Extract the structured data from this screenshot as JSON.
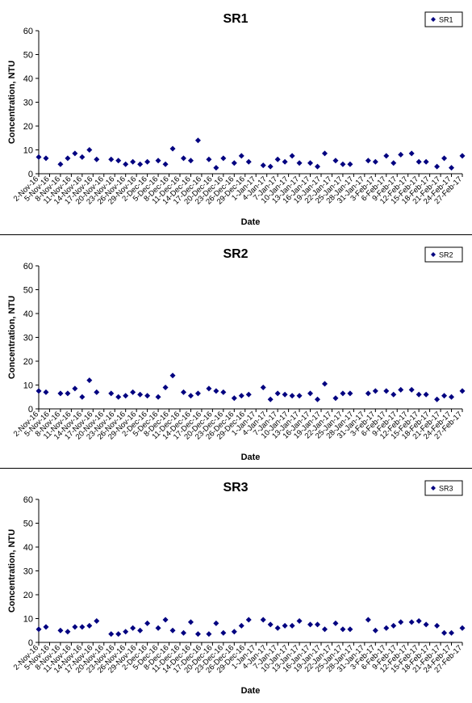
{
  "chart_data": [
    {
      "type": "scatter",
      "title": "SR1",
      "xlabel": "Date",
      "ylabel": "Concentration, NTU",
      "ylim": [
        0,
        60
      ],
      "yticks": [
        0,
        10,
        20,
        30,
        40,
        50,
        60
      ],
      "xlim": [
        "2016-11-02",
        "2017-02-27"
      ],
      "xticks": [
        "2-Nov-16",
        "5-Nov-16",
        "8-Nov-16",
        "11-Nov-16",
        "14-Nov-16",
        "17-Nov-16",
        "20-Nov-16",
        "23-Nov-16",
        "26-Nov-16",
        "29-Nov-16",
        "2-Dec-16",
        "5-Dec-16",
        "8-Dec-16",
        "11-Dec-16",
        "14-Dec-16",
        "17-Dec-16",
        "20-Dec-16",
        "23-Dec-16",
        "26-Dec-16",
        "29-Dec-16",
        "1-Jan-17",
        "4-Jan-17",
        "7-Jan-17",
        "10-Jan-17",
        "13-Jan-17",
        "16-Jan-17",
        "19-Jan-17",
        "22-Jan-17",
        "25-Jan-17",
        "28-Jan-17",
        "31-Jan-17",
        "3-Feb-17",
        "6-Feb-17",
        "9-Feb-17",
        "12-Feb-17",
        "15-Feb-17",
        "18-Feb-17",
        "21-Feb-17",
        "24-Feb-17",
        "27-Feb-17"
      ],
      "legend": "top-right",
      "grid": false,
      "color": "#000080",
      "series": [
        {
          "name": "SR1",
          "points": [
            [
              "2016-11-02",
              7
            ],
            [
              "2016-11-04",
              6.5
            ],
            [
              "2016-11-08",
              4
            ],
            [
              "2016-11-10",
              6.5
            ],
            [
              "2016-11-12",
              8.5
            ],
            [
              "2016-11-14",
              7
            ],
            [
              "2016-11-16",
              10
            ],
            [
              "2016-11-18",
              6
            ],
            [
              "2016-11-22",
              6
            ],
            [
              "2016-11-24",
              5.5
            ],
            [
              "2016-11-26",
              4
            ],
            [
              "2016-11-28",
              5
            ],
            [
              "2016-11-30",
              4
            ],
            [
              "2016-12-02",
              5
            ],
            [
              "2016-12-05",
              5.5
            ],
            [
              "2016-12-07",
              4
            ],
            [
              "2016-12-09",
              10.5
            ],
            [
              "2016-12-12",
              6.5
            ],
            [
              "2016-12-14",
              5.5
            ],
            [
              "2016-12-16",
              14
            ],
            [
              "2016-12-19",
              6
            ],
            [
              "2016-12-21",
              2.5
            ],
            [
              "2016-12-23",
              6.5
            ],
            [
              "2016-12-26",
              4.5
            ],
            [
              "2016-12-28",
              7.5
            ],
            [
              "2016-12-30",
              5
            ],
            [
              "2017-01-03",
              3.5
            ],
            [
              "2017-01-05",
              3
            ],
            [
              "2017-01-07",
              6
            ],
            [
              "2017-01-09",
              5
            ],
            [
              "2017-01-11",
              7.5
            ],
            [
              "2017-01-13",
              4.5
            ],
            [
              "2017-01-16",
              4.5
            ],
            [
              "2017-01-18",
              3
            ],
            [
              "2017-01-20",
              8.5
            ],
            [
              "2017-01-23",
              5.5
            ],
            [
              "2017-01-25",
              4
            ],
            [
              "2017-01-27",
              4
            ],
            [
              "2017-02-01",
              5.5
            ],
            [
              "2017-02-03",
              5
            ],
            [
              "2017-02-06",
              7.5
            ],
            [
              "2017-02-08",
              4.5
            ],
            [
              "2017-02-10",
              8
            ],
            [
              "2017-02-13",
              8.5
            ],
            [
              "2017-02-15",
              5
            ],
            [
              "2017-02-17",
              5
            ],
            [
              "2017-02-20",
              3
            ],
            [
              "2017-02-22",
              6.5
            ],
            [
              "2017-02-24",
              2.5
            ],
            [
              "2017-02-27",
              7.5
            ]
          ]
        }
      ]
    },
    {
      "type": "scatter",
      "title": "SR2",
      "xlabel": "Date",
      "ylabel": "Concentration, NTU",
      "ylim": [
        0,
        60
      ],
      "yticks": [
        0,
        10,
        20,
        30,
        40,
        50,
        60
      ],
      "xlim": [
        "2016-11-02",
        "2017-02-27"
      ],
      "xticks": [
        "2-Nov-16",
        "5-Nov-16",
        "8-Nov-16",
        "11-Nov-16",
        "14-Nov-16",
        "17-Nov-16",
        "20-Nov-16",
        "23-Nov-16",
        "26-Nov-16",
        "29-Nov-16",
        "2-Dec-16",
        "5-Dec-16",
        "8-Dec-16",
        "11-Dec-16",
        "14-Dec-16",
        "17-Dec-16",
        "20-Dec-16",
        "23-Dec-16",
        "26-Dec-16",
        "29-Dec-16",
        "1-Jan-17",
        "4-Jan-17",
        "7-Jan-17",
        "10-Jan-17",
        "13-Jan-17",
        "16-Jan-17",
        "19-Jan-17",
        "22-Jan-17",
        "25-Jan-17",
        "28-Jan-17",
        "31-Jan-17",
        "3-Feb-17",
        "6-Feb-17",
        "9-Feb-17",
        "12-Feb-17",
        "15-Feb-17",
        "18-Feb-17",
        "21-Feb-17",
        "24-Feb-17",
        "27-Feb-17"
      ],
      "legend": "top-right",
      "grid": false,
      "color": "#000080",
      "series": [
        {
          "name": "SR2",
          "points": [
            [
              "2016-11-02",
              7.5
            ],
            [
              "2016-11-04",
              7
            ],
            [
              "2016-11-08",
              6.5
            ],
            [
              "2016-11-10",
              6.5
            ],
            [
              "2016-11-12",
              8.5
            ],
            [
              "2016-11-14",
              5
            ],
            [
              "2016-11-16",
              12
            ],
            [
              "2016-11-18",
              7
            ],
            [
              "2016-11-22",
              6.5
            ],
            [
              "2016-11-24",
              5
            ],
            [
              "2016-11-26",
              5.5
            ],
            [
              "2016-11-28",
              7
            ],
            [
              "2016-11-30",
              6
            ],
            [
              "2016-12-02",
              5.5
            ],
            [
              "2016-12-05",
              5
            ],
            [
              "2016-12-07",
              9
            ],
            [
              "2016-12-09",
              14
            ],
            [
              "2016-12-12",
              7
            ],
            [
              "2016-12-14",
              5.5
            ],
            [
              "2016-12-16",
              6.5
            ],
            [
              "2016-12-19",
              8.5
            ],
            [
              "2016-12-21",
              7.5
            ],
            [
              "2016-12-23",
              7
            ],
            [
              "2016-12-26",
              4.5
            ],
            [
              "2016-12-28",
              5.5
            ],
            [
              "2016-12-30",
              6
            ],
            [
              "2017-01-03",
              9
            ],
            [
              "2017-01-05",
              4
            ],
            [
              "2017-01-07",
              6.5
            ],
            [
              "2017-01-09",
              6
            ],
            [
              "2017-01-11",
              5.5
            ],
            [
              "2017-01-13",
              5.5
            ],
            [
              "2017-01-16",
              6.5
            ],
            [
              "2017-01-18",
              4
            ],
            [
              "2017-01-20",
              10.5
            ],
            [
              "2017-01-23",
              4.5
            ],
            [
              "2017-01-25",
              6.5
            ],
            [
              "2017-01-27",
              6.5
            ],
            [
              "2017-02-01",
              6.5
            ],
            [
              "2017-02-03",
              7.5
            ],
            [
              "2017-02-06",
              7.5
            ],
            [
              "2017-02-08",
              6
            ],
            [
              "2017-02-10",
              8
            ],
            [
              "2017-02-13",
              8
            ],
            [
              "2017-02-15",
              6
            ],
            [
              "2017-02-17",
              6
            ],
            [
              "2017-02-20",
              4
            ],
            [
              "2017-02-22",
              5.5
            ],
            [
              "2017-02-24",
              5
            ],
            [
              "2017-02-27",
              7.5
            ]
          ]
        }
      ]
    },
    {
      "type": "scatter",
      "title": "SR3",
      "xlabel": "Date",
      "ylabel": "Concentration, NTU",
      "ylim": [
        0,
        60
      ],
      "yticks": [
        0,
        10,
        20,
        30,
        40,
        50,
        60
      ],
      "xlim": [
        "2016-11-02",
        "2017-02-27"
      ],
      "xticks": [
        "2-Nov-16",
        "5-Nov-16",
        "8-Nov-16",
        "11-Nov-16",
        "14-Nov-16",
        "17-Nov-16",
        "20-Nov-16",
        "23-Nov-16",
        "26-Nov-16",
        "29-Nov-16",
        "2-Dec-16",
        "5-Dec-16",
        "8-Dec-16",
        "11-Dec-16",
        "14-Dec-16",
        "17-Dec-16",
        "20-Dec-16",
        "23-Dec-16",
        "26-Dec-16",
        "29-Dec-16",
        "1-Jan-17",
        "4-Jan-17",
        "7-Jan-17",
        "10-Jan-17",
        "13-Jan-17",
        "16-Jan-17",
        "19-Jan-17",
        "22-Jan-17",
        "25-Jan-17",
        "28-Jan-17",
        "31-Jan-17",
        "3-Feb-17",
        "6-Feb-17",
        "9-Feb-17",
        "12-Feb-17",
        "15-Feb-17",
        "18-Feb-17",
        "21-Feb-17",
        "24-Feb-17",
        "27-Feb-17"
      ],
      "legend": "top-right",
      "grid": false,
      "color": "#000080",
      "series": [
        {
          "name": "SR3",
          "points": [
            [
              "2016-11-02",
              5.5
            ],
            [
              "2016-11-04",
              6.5
            ],
            [
              "2016-11-08",
              5
            ],
            [
              "2016-11-10",
              4.5
            ],
            [
              "2016-11-12",
              6.5
            ],
            [
              "2016-11-14",
              6.5
            ],
            [
              "2016-11-16",
              7
            ],
            [
              "2016-11-18",
              9
            ],
            [
              "2016-11-22",
              3.5
            ],
            [
              "2016-11-24",
              3.5
            ],
            [
              "2016-11-26",
              4.5
            ],
            [
              "2016-11-28",
              6
            ],
            [
              "2016-11-30",
              5
            ],
            [
              "2016-12-02",
              8
            ],
            [
              "2016-12-05",
              6
            ],
            [
              "2016-12-07",
              9.5
            ],
            [
              "2016-12-09",
              5
            ],
            [
              "2016-12-12",
              4
            ],
            [
              "2016-12-14",
              8.5
            ],
            [
              "2016-12-16",
              3.5
            ],
            [
              "2016-12-19",
              3.5
            ],
            [
              "2016-12-21",
              8
            ],
            [
              "2016-12-23",
              4
            ],
            [
              "2016-12-26",
              4.5
            ],
            [
              "2016-12-28",
              7
            ],
            [
              "2016-12-30",
              9.5
            ],
            [
              "2017-01-03",
              9.5
            ],
            [
              "2017-01-05",
              7.5
            ],
            [
              "2017-01-07",
              6
            ],
            [
              "2017-01-09",
              7
            ],
            [
              "2017-01-11",
              7
            ],
            [
              "2017-01-13",
              9
            ],
            [
              "2017-01-16",
              7.5
            ],
            [
              "2017-01-18",
              7.5
            ],
            [
              "2017-01-20",
              5.5
            ],
            [
              "2017-01-23",
              8
            ],
            [
              "2017-01-25",
              5.5
            ],
            [
              "2017-01-27",
              5.5
            ],
            [
              "2017-02-01",
              9.5
            ],
            [
              "2017-02-03",
              5
            ],
            [
              "2017-02-06",
              6
            ],
            [
              "2017-02-08",
              7
            ],
            [
              "2017-02-10",
              8.5
            ],
            [
              "2017-02-13",
              8.5
            ],
            [
              "2017-02-15",
              9
            ],
            [
              "2017-02-17",
              7.5
            ],
            [
              "2017-02-20",
              7
            ],
            [
              "2017-02-22",
              4
            ],
            [
              "2017-02-24",
              4
            ],
            [
              "2017-02-27",
              6
            ]
          ]
        }
      ]
    }
  ]
}
